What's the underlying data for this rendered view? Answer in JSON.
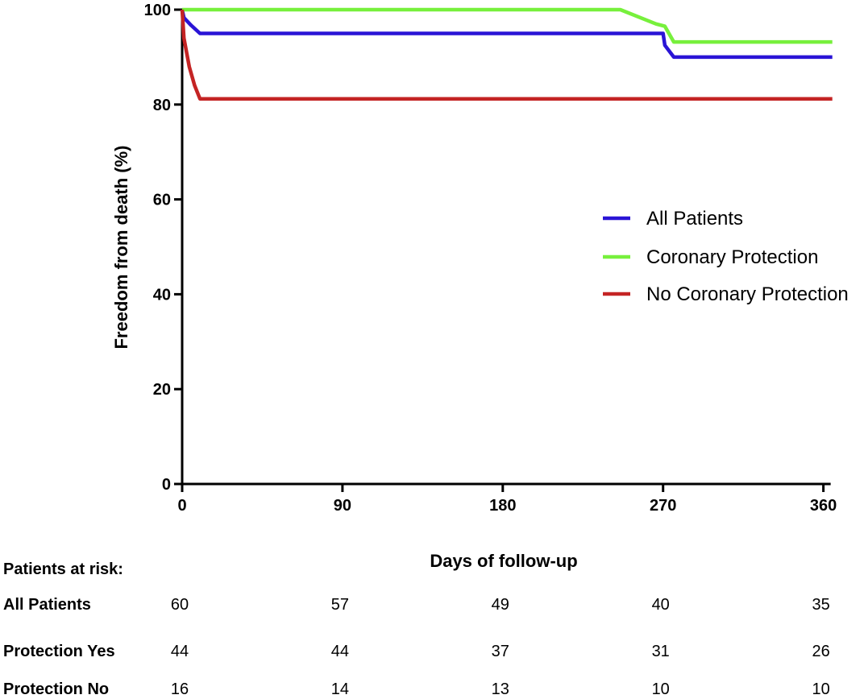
{
  "chart_data": {
    "type": "line",
    "subtype": "kaplan-meier step curves",
    "xlabel": "Days of follow-up",
    "ylabel": "Freedom from death (%)",
    "xlim": [
      0,
      365
    ],
    "ylim": [
      0,
      100
    ],
    "xticks": [
      0,
      90,
      180,
      270,
      360
    ],
    "yticks": [
      0,
      20,
      40,
      60,
      80,
      100
    ],
    "grid": false,
    "legend_position": "right",
    "series": [
      {
        "name": "All Patients",
        "color": "#2a14d6",
        "points": [
          [
            0,
            100
          ],
          [
            1,
            98.3
          ],
          [
            5,
            96.7
          ],
          [
            10,
            95
          ],
          [
            270,
            95
          ],
          [
            271,
            92.5
          ],
          [
            276,
            90
          ],
          [
            365,
            90
          ]
        ]
      },
      {
        "name": "Coronary Protection",
        "color": "#77f03c",
        "points": [
          [
            0,
            100
          ],
          [
            246,
            100
          ],
          [
            266,
            97.0
          ],
          [
            271,
            96.5
          ],
          [
            276,
            93.2
          ],
          [
            365,
            93.2
          ]
        ]
      },
      {
        "name": "No Coronary Protection",
        "color": "#c42424",
        "points": [
          [
            0,
            100
          ],
          [
            1,
            94
          ],
          [
            4,
            88
          ],
          [
            7,
            84
          ],
          [
            10,
            81.2
          ],
          [
            365,
            81.2
          ]
        ]
      }
    ],
    "risk_table": {
      "heading": "Patients at risk:",
      "time_points": [
        0,
        90,
        180,
        270,
        360
      ],
      "rows": [
        {
          "label": "All Patients",
          "values": [
            "60",
            "57",
            "49",
            "40",
            "35"
          ]
        },
        {
          "label": "Protection Yes",
          "values": [
            "44",
            "44",
            "37",
            "31",
            "26"
          ]
        },
        {
          "label": "Protection No",
          "values": [
            "16",
            "14",
            "13",
            "10",
            "10"
          ]
        }
      ]
    }
  }
}
